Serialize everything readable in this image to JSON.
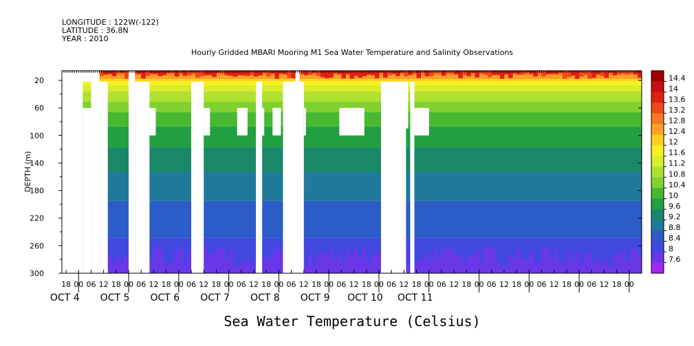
{
  "header": {
    "longitude": "LONGITUDE : 122W(-122)",
    "latitude": "LATITUDE : 36.8N",
    "year": "YEAR : 2010"
  },
  "chart_data": {
    "type": "heatmap",
    "title": "Hourly Gridded MBARI Mooring M1 Sea Water Temperature and Salinity Observations",
    "xlabel": "Sea Water Temperature (Celsius)",
    "ylabel": "DEPTH (m)",
    "x_range_hours": [
      -8,
      270
    ],
    "y_range_m": [
      6,
      300
    ],
    "y_ticks": [
      20,
      60,
      100,
      140,
      180,
      220,
      260,
      300
    ],
    "x_hour_ticks": [
      {
        "hour": -6,
        "label": "18"
      },
      {
        "hour": 0,
        "label": "00"
      },
      {
        "hour": 6,
        "label": "06"
      },
      {
        "hour": 12,
        "label": "12"
      },
      {
        "hour": 18,
        "label": "18"
      },
      {
        "hour": 24,
        "label": "00"
      },
      {
        "hour": 30,
        "label": "06"
      },
      {
        "hour": 36,
        "label": "12"
      },
      {
        "hour": 42,
        "label": "18"
      },
      {
        "hour": 48,
        "label": "00"
      },
      {
        "hour": 54,
        "label": "06"
      },
      {
        "hour": 60,
        "label": "12"
      },
      {
        "hour": 66,
        "label": "18"
      },
      {
        "hour": 72,
        "label": "00"
      },
      {
        "hour": 78,
        "label": "06"
      },
      {
        "hour": 84,
        "label": "12"
      },
      {
        "hour": 90,
        "label": "18"
      },
      {
        "hour": 96,
        "label": "00"
      },
      {
        "hour": 102,
        "label": "06"
      },
      {
        "hour": 108,
        "label": "12"
      },
      {
        "hour": 114,
        "label": "18"
      },
      {
        "hour": 120,
        "label": "00"
      },
      {
        "hour": 126,
        "label": "06"
      },
      {
        "hour": 132,
        "label": "12"
      },
      {
        "hour": 138,
        "label": "18"
      },
      {
        "hour": 144,
        "label": "00"
      },
      {
        "hour": 150,
        "label": "06"
      },
      {
        "hour": 156,
        "label": "12"
      },
      {
        "hour": 162,
        "label": "18"
      },
      {
        "hour": 168,
        "label": "00"
      },
      {
        "hour": 174,
        "label": "06"
      },
      {
        "hour": 180,
        "label": "12"
      },
      {
        "hour": 186,
        "label": "18"
      },
      {
        "hour": 192,
        "label": "00"
      },
      {
        "hour": 198,
        "label": "06"
      },
      {
        "hour": 204,
        "label": "12"
      },
      {
        "hour": 210,
        "label": "18"
      },
      {
        "hour": 216,
        "label": "00"
      },
      {
        "hour": 222,
        "label": "06"
      },
      {
        "hour": 228,
        "label": "12"
      },
      {
        "hour": 234,
        "label": "18"
      },
      {
        "hour": 240,
        "label": "00"
      },
      {
        "hour": 246,
        "label": "06"
      },
      {
        "hour": 252,
        "label": "12"
      },
      {
        "hour": 258,
        "label": "18"
      },
      {
        "hour": 264,
        "label": "00"
      }
    ],
    "day_labels": [
      {
        "hour": 0,
        "label": "OCT  4"
      },
      {
        "hour": 24,
        "label": "OCT  5"
      },
      {
        "hour": 48,
        "label": "OCT  6"
      },
      {
        "hour": 72,
        "label": "OCT  7"
      },
      {
        "hour": 96,
        "label": "OCT  8"
      },
      {
        "hour": 120,
        "label": "OCT  9"
      },
      {
        "hour": 144,
        "label": "OCT 10"
      },
      {
        "hour": 168,
        "label": "OCT 11"
      }
    ],
    "colorbar": {
      "levels": [
        "14.4",
        "14",
        "13.6",
        "13.2",
        "12.8",
        "12.4",
        "12",
        "11.6",
        "11.2",
        "10.8",
        "10.4",
        "10",
        "9.6",
        "9.2",
        "8.8",
        "8.4",
        "8",
        "7.6"
      ],
      "colors": [
        "#a00000",
        "#c81010",
        "#e02010",
        "#f04818",
        "#f87820",
        "#fca028",
        "#ffd020",
        "#f8f020",
        "#d8ee28",
        "#b0e030",
        "#80d030",
        "#48b830",
        "#20a040",
        "#188868",
        "#1e7a98",
        "#2c5cc8",
        "#4048e0",
        "#6838e8",
        "#a028f0"
      ]
    },
    "depth_profile": [
      {
        "depth": 6,
        "temp": 13.4
      },
      {
        "depth": 15,
        "temp": 12.4
      },
      {
        "depth": 25,
        "temp": 11.6
      },
      {
        "depth": 40,
        "temp": 11.0
      },
      {
        "depth": 60,
        "temp": 10.5
      },
      {
        "depth": 80,
        "temp": 10.1
      },
      {
        "depth": 100,
        "temp": 9.8
      },
      {
        "depth": 140,
        "temp": 9.3
      },
      {
        "depth": 180,
        "temp": 8.9
      },
      {
        "depth": 220,
        "temp": 8.6
      },
      {
        "depth": 260,
        "temp": 8.3
      },
      {
        "depth": 300,
        "temp": 7.9
      }
    ],
    "missing_data": [
      {
        "h0": -8,
        "h1": 10,
        "d0": 6,
        "d1": 22
      },
      {
        "h0": -8,
        "h1": 2,
        "d0": 22,
        "d1": 300
      },
      {
        "h0": 2,
        "h1": 6,
        "d0": 60,
        "d1": 300
      },
      {
        "h0": 6,
        "h1": 10,
        "d0": 22,
        "d1": 300
      },
      {
        "h0": 10,
        "h1": 14,
        "d0": 22,
        "d1": 300
      },
      {
        "h0": 24,
        "h1": 27,
        "d0": 6,
        "d1": 300
      },
      {
        "h0": 27,
        "h1": 34,
        "d0": 22,
        "d1": 300
      },
      {
        "h0": 34,
        "h1": 37,
        "d0": 60,
        "d1": 100
      },
      {
        "h0": 54,
        "h1": 60,
        "d0": 22,
        "d1": 300
      },
      {
        "h0": 60,
        "h1": 63,
        "d0": 60,
        "d1": 100
      },
      {
        "h0": 76,
        "h1": 81,
        "d0": 60,
        "d1": 100
      },
      {
        "h0": 85,
        "h1": 88,
        "d0": 22,
        "d1": 300
      },
      {
        "h0": 88,
        "h1": 89,
        "d0": 60,
        "d1": 100
      },
      {
        "h0": 93,
        "h1": 97,
        "d0": 60,
        "d1": 100
      },
      {
        "h0": 98,
        "h1": 108,
        "d0": 22,
        "d1": 300
      },
      {
        "h0": 104,
        "h1": 106,
        "d0": 6,
        "d1": 22
      },
      {
        "h0": 108,
        "h1": 109,
        "d0": 60,
        "d1": 100
      },
      {
        "h0": 125,
        "h1": 137,
        "d0": 60,
        "d1": 100
      },
      {
        "h0": 145,
        "h1": 157,
        "d0": 22,
        "d1": 300
      },
      {
        "h0": 157,
        "h1": 158,
        "d0": 22,
        "d1": 90
      },
      {
        "h0": 159,
        "h1": 161,
        "d0": 22,
        "d1": 300
      },
      {
        "h0": 161,
        "h1": 168,
        "d0": 60,
        "d1": 100
      }
    ]
  }
}
